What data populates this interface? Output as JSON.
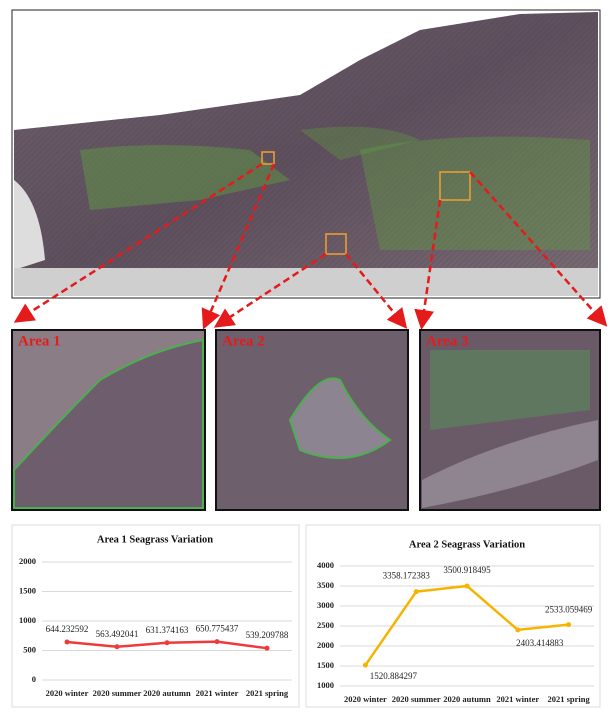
{
  "area_labels": [
    "Area 1",
    "Area 2",
    "Area 3"
  ],
  "chart_data": [
    {
      "type": "line",
      "title": "Area 1 Seagrass Variation",
      "categories": [
        "2020 winter",
        "2020 summer",
        "2020 autumn",
        "2021 winter",
        "2021 spring"
      ],
      "series": [
        {
          "name": "Area 1",
          "color": "#f03a3a",
          "values": [
            644.232592,
            563.492041,
            631.374163,
            650.775437,
            539.209788
          ]
        }
      ],
      "ylim": [
        0,
        2000
      ],
      "yticks": [
        0,
        500,
        1000,
        1500,
        2000
      ],
      "grid": true
    },
    {
      "type": "line",
      "title": "Area 2 Seagrass Variation",
      "categories": [
        "2020 winter",
        "2020 summer",
        "2020 autumn",
        "2021 winter",
        "2021 spring"
      ],
      "series": [
        {
          "name": "Area 2",
          "color": "#f5b400",
          "values": [
            1520.884297,
            3358.172383,
            3500.918495,
            2403.414883,
            2533.059469
          ]
        }
      ],
      "ylim": [
        1000,
        4000
      ],
      "yticks": [
        1000,
        1500,
        2000,
        2500,
        3000,
        3500,
        4000
      ],
      "grid": true
    }
  ]
}
